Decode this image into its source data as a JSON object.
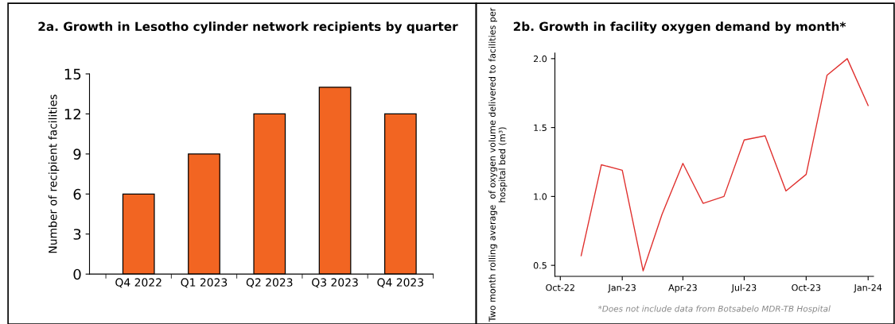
{
  "chart_data": [
    {
      "type": "bar",
      "title": "2a. Growth in Lesotho cylinder network recipients by quarter",
      "ylabel": "Number of recipient facilities",
      "categories": [
        "Q4 2022",
        "Q1 2023",
        "Q2 2023",
        "Q3 2023",
        "Q4 2023"
      ],
      "values": [
        6,
        9,
        12,
        14,
        12
      ],
      "color": "#f26522",
      "ylim": [
        0,
        15
      ],
      "yticks": [
        0,
        3,
        6,
        9,
        12,
        15
      ],
      "grid": false
    },
    {
      "type": "line",
      "title": "2b. Growth in facility oxygen demand by month*",
      "ylabel": "Two month rolling average  of oxygen volume delivered to facilities per hospital bed (m³)",
      "x": [
        "2022-11",
        "2022-12",
        "2023-01",
        "2023-02",
        "2023-03",
        "2023-04",
        "2023-05",
        "2023-06",
        "2023-07",
        "2023-08",
        "2023-09",
        "2023-10",
        "2023-11",
        "2023-12",
        "2024-01"
      ],
      "series": [
        {
          "color": "#e0312f",
          "values": [
            0.57,
            1.23,
            1.19,
            0.46,
            0.87,
            1.24,
            0.95,
            1.0,
            1.41,
            1.44,
            1.04,
            1.16,
            1.88,
            2.0,
            1.66
          ]
        }
      ],
      "xlim": [
        "2022-09-23",
        "2024-01-09"
      ],
      "xticks": [
        {
          "value": "2022-10",
          "label": "Oct-22"
        },
        {
          "value": "2023-01",
          "label": "Jan-23"
        },
        {
          "value": "2023-04",
          "label": "Apr-23"
        },
        {
          "value": "2023-07",
          "label": "Jul-23"
        },
        {
          "value": "2023-10",
          "label": "Oct-23"
        },
        {
          "value": "2024-01",
          "label": "Jan-24"
        }
      ],
      "ylim": [
        0.42,
        2.04
      ],
      "yticks": [
        {
          "value": 0.5,
          "label": "0.5"
        },
        {
          "value": 1.0,
          "label": "1.0"
        },
        {
          "value": 1.5,
          "label": "1.5"
        },
        {
          "value": 2.0,
          "label": "2.0"
        }
      ],
      "grid": false,
      "marker": "none",
      "line_style": "solid",
      "annotations": [
        "*Does not include data from Botsabelo MDR-TB Hospital"
      ]
    }
  ]
}
